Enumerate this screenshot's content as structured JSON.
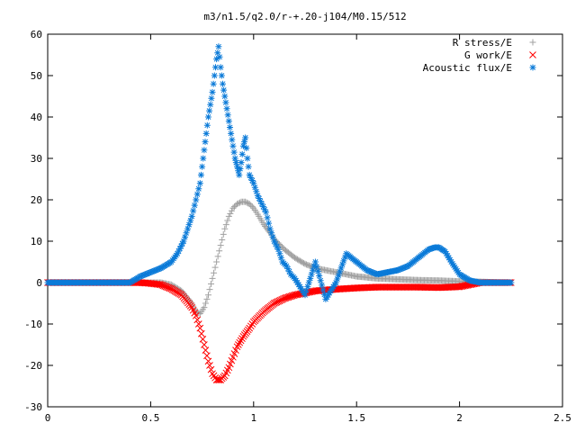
{
  "chart_data": {
    "type": "scatter",
    "title": "m3/n1.5/q2.0/r-+.20-j104/M0.15/512",
    "xlabel": "",
    "ylabel": "",
    "xlim": [
      0,
      2.5
    ],
    "ylim": [
      -30,
      60
    ],
    "xticks": [
      0,
      0.5,
      1,
      1.5,
      2,
      2.5
    ],
    "xtick_labels": [
      "0",
      "0.5",
      "1",
      "1.5",
      "2",
      "2.5"
    ],
    "yticks": [
      -30,
      -20,
      -10,
      0,
      10,
      20,
      30,
      40,
      50,
      60
    ],
    "ytick_labels": [
      "-30",
      "-20",
      "-10",
      "0",
      "10",
      "20",
      "30",
      "40",
      "50",
      "60"
    ],
    "grid": false,
    "legend_position": "top-right",
    "series": [
      {
        "name": "R stress/E",
        "marker": "plus",
        "color": "#a0a0a0",
        "points": [
          [
            0,
            0
          ],
          [
            0.1,
            0
          ],
          [
            0.2,
            0
          ],
          [
            0.3,
            0
          ],
          [
            0.4,
            0
          ],
          [
            0.45,
            0
          ],
          [
            0.5,
            0
          ],
          [
            0.55,
            0
          ],
          [
            0.6,
            -0.5
          ],
          [
            0.65,
            -2
          ],
          [
            0.7,
            -5
          ],
          [
            0.72,
            -7
          ],
          [
            0.74,
            -7.5
          ],
          [
            0.76,
            -6
          ],
          [
            0.78,
            -3
          ],
          [
            0.8,
            1
          ],
          [
            0.82,
            5
          ],
          [
            0.84,
            9
          ],
          [
            0.86,
            13
          ],
          [
            0.88,
            16
          ],
          [
            0.9,
            18
          ],
          [
            0.92,
            19
          ],
          [
            0.94,
            19.5
          ],
          [
            0.96,
            19.5
          ],
          [
            0.98,
            19
          ],
          [
            1.0,
            18
          ],
          [
            1.02,
            16.5
          ],
          [
            1.05,
            14
          ],
          [
            1.08,
            12
          ],
          [
            1.1,
            10.5
          ],
          [
            1.15,
            8
          ],
          [
            1.2,
            6
          ],
          [
            1.25,
            4.5
          ],
          [
            1.3,
            3.5
          ],
          [
            1.35,
            3
          ],
          [
            1.4,
            2.5
          ],
          [
            1.45,
            2
          ],
          [
            1.5,
            1.5
          ],
          [
            1.6,
            1
          ],
          [
            1.7,
            0.8
          ],
          [
            1.8,
            0.6
          ],
          [
            1.9,
            0.5
          ],
          [
            2.0,
            0.3
          ],
          [
            2.1,
            0.2
          ],
          [
            2.2,
            0
          ],
          [
            2.25,
            0
          ]
        ]
      },
      {
        "name": "G work/E",
        "marker": "cross",
        "color": "#ff0000",
        "points": [
          [
            0,
            0
          ],
          [
            0.1,
            0
          ],
          [
            0.2,
            0
          ],
          [
            0.3,
            0
          ],
          [
            0.4,
            0
          ],
          [
            0.45,
            0
          ],
          [
            0.5,
            -0.2
          ],
          [
            0.55,
            -0.5
          ],
          [
            0.6,
            -1.5
          ],
          [
            0.65,
            -3
          ],
          [
            0.7,
            -6
          ],
          [
            0.72,
            -8
          ],
          [
            0.74,
            -11
          ],
          [
            0.76,
            -15
          ],
          [
            0.78,
            -19
          ],
          [
            0.8,
            -22
          ],
          [
            0.82,
            -23.5
          ],
          [
            0.84,
            -23.5
          ],
          [
            0.86,
            -22.5
          ],
          [
            0.88,
            -20.5
          ],
          [
            0.9,
            -18
          ],
          [
            0.92,
            -15.5
          ],
          [
            0.95,
            -13
          ],
          [
            0.98,
            -11
          ],
          [
            1.0,
            -9.5
          ],
          [
            1.05,
            -7
          ],
          [
            1.1,
            -5
          ],
          [
            1.15,
            -3.8
          ],
          [
            1.2,
            -3
          ],
          [
            1.25,
            -2.5
          ],
          [
            1.3,
            -2
          ],
          [
            1.4,
            -1.6
          ],
          [
            1.5,
            -1.3
          ],
          [
            1.6,
            -1.1
          ],
          [
            1.7,
            -1.1
          ],
          [
            1.8,
            -1.1
          ],
          [
            1.9,
            -1.2
          ],
          [
            2.0,
            -1
          ],
          [
            2.05,
            -0.5
          ],
          [
            2.1,
            0
          ],
          [
            2.2,
            0
          ],
          [
            2.25,
            0
          ]
        ]
      },
      {
        "name": "Acoustic flux/E",
        "marker": "star",
        "color": "#0a7ad8",
        "points": [
          [
            0,
            0
          ],
          [
            0.1,
            0
          ],
          [
            0.2,
            0
          ],
          [
            0.3,
            0
          ],
          [
            0.4,
            0
          ],
          [
            0.45,
            1.5
          ],
          [
            0.5,
            2.5
          ],
          [
            0.55,
            3.5
          ],
          [
            0.6,
            5
          ],
          [
            0.63,
            7
          ],
          [
            0.66,
            10
          ],
          [
            0.68,
            13
          ],
          [
            0.7,
            16
          ],
          [
            0.72,
            20
          ],
          [
            0.74,
            24
          ],
          [
            0.75,
            28
          ],
          [
            0.76,
            32
          ],
          [
            0.77,
            36
          ],
          [
            0.78,
            40
          ],
          [
            0.79,
            43
          ],
          [
            0.8,
            46
          ],
          [
            0.81,
            50
          ],
          [
            0.82,
            54
          ],
          [
            0.83,
            57
          ],
          [
            0.84,
            52
          ],
          [
            0.85,
            48
          ],
          [
            0.86,
            45
          ],
          [
            0.87,
            42
          ],
          [
            0.88,
            39
          ],
          [
            0.89,
            36
          ],
          [
            0.9,
            33
          ],
          [
            0.91,
            30
          ],
          [
            0.92,
            28
          ],
          [
            0.93,
            26
          ],
          [
            0.94,
            29
          ],
          [
            0.95,
            33
          ],
          [
            0.96,
            35
          ],
          [
            0.97,
            30
          ],
          [
            0.98,
            26
          ],
          [
            1.0,
            24
          ],
          [
            1.02,
            21
          ],
          [
            1.04,
            19
          ],
          [
            1.06,
            17
          ],
          [
            1.08,
            13
          ],
          [
            1.1,
            10
          ],
          [
            1.12,
            8
          ],
          [
            1.14,
            5
          ],
          [
            1.16,
            4
          ],
          [
            1.18,
            2
          ],
          [
            1.2,
            1
          ],
          [
            1.25,
            -3
          ],
          [
            1.3,
            5
          ],
          [
            1.35,
            -4
          ],
          [
            1.4,
            0
          ],
          [
            1.45,
            7
          ],
          [
            1.5,
            5
          ],
          [
            1.55,
            3
          ],
          [
            1.6,
            2
          ],
          [
            1.65,
            2.5
          ],
          [
            1.7,
            3
          ],
          [
            1.75,
            4
          ],
          [
            1.8,
            6
          ],
          [
            1.85,
            8
          ],
          [
            1.88,
            8.5
          ],
          [
            1.9,
            8.5
          ],
          [
            1.93,
            7.5
          ],
          [
            1.96,
            5
          ],
          [
            2.0,
            2
          ],
          [
            2.05,
            0.5
          ],
          [
            2.1,
            0
          ],
          [
            2.2,
            0
          ],
          [
            2.25,
            0
          ]
        ]
      }
    ]
  }
}
